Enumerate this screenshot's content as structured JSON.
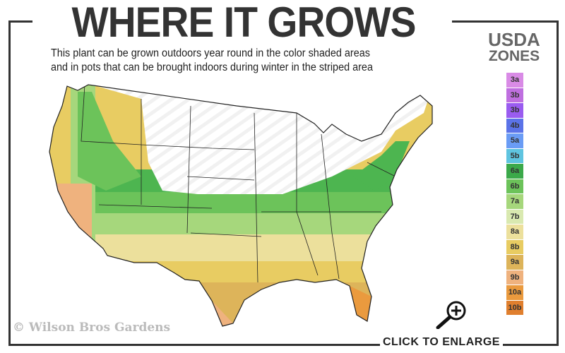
{
  "header": {
    "title": "WHERE IT GROWS",
    "subtitle_line1": "This plant can be grown outdoors year round in the color shaded areas",
    "subtitle_line2": "and in pots that can be brought indoors during winter in the striped area"
  },
  "legend": {
    "title_line1": "USDA",
    "title_line2": "ZONES",
    "zones": [
      {
        "label": "3a",
        "color": "#d98be6"
      },
      {
        "label": "3b",
        "color": "#bf6fe0"
      },
      {
        "label": "3b",
        "color": "#9a5cf0"
      },
      {
        "label": "4b",
        "color": "#5b73e8"
      },
      {
        "label": "5a",
        "color": "#6a9cf5"
      },
      {
        "label": "5b",
        "color": "#5fc4e0"
      },
      {
        "label": "6a",
        "color": "#3ba94a"
      },
      {
        "label": "6b",
        "color": "#6cc35a"
      },
      {
        "label": "7a",
        "color": "#a6d77c"
      },
      {
        "label": "7b",
        "color": "#d9e9b0"
      },
      {
        "label": "8a",
        "color": "#ece09c"
      },
      {
        "label": "8b",
        "color": "#e8cc62"
      },
      {
        "label": "9a",
        "color": "#ddb45a"
      },
      {
        "label": "9b",
        "color": "#efb27e"
      },
      {
        "label": "10a",
        "color": "#ea9a3e"
      },
      {
        "label": "10b",
        "color": "#e07f2e"
      }
    ]
  },
  "footer": {
    "copyright": "© Wilson Bros Gardens",
    "enlarge_label": "CLICK TO ENLARGE",
    "enlarge_icon": "magnifier-plus-icon"
  }
}
